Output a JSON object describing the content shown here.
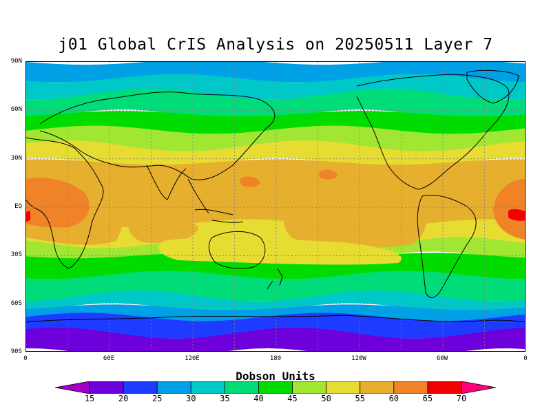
{
  "title": "j01 Global CrIS Analysis on 20250511 Layer 7",
  "legend": {
    "title": "Dobson Units",
    "ticks": [
      "15",
      "20",
      "25",
      "30",
      "35",
      "40",
      "45",
      "50",
      "55",
      "60",
      "65",
      "70"
    ],
    "colors": [
      "#a000c8",
      "#6e00dc",
      "#1e3cff",
      "#00a0e6",
      "#00c8c8",
      "#00dc78",
      "#00dc00",
      "#a0e632",
      "#e6dc32",
      "#e6af2d",
      "#f08228",
      "#f00000",
      "#ff007a"
    ]
  },
  "axes": {
    "lat_labels": [
      "90N",
      "60N",
      "30N",
      "EQ",
      "30S",
      "60S",
      "90S"
    ],
    "lon_labels": [
      "0",
      "60E",
      "120E",
      "180",
      "120W",
      "60W",
      "0"
    ]
  },
  "map_data": {
    "type": "filled-contour",
    "projection": "cylindrical",
    "lon_range": [
      0,
      360
    ],
    "lat_range": [
      -90,
      90
    ],
    "grid": true,
    "coastlines": true,
    "zonal_bands": [
      {
        "lat": [
          80,
          90
        ],
        "value": 27
      },
      {
        "lat": [
          70,
          80
        ],
        "value": 32
      },
      {
        "lat": [
          58,
          70
        ],
        "value": 37
      },
      {
        "lat": [
          48,
          58
        ],
        "value": 43
      },
      {
        "lat": [
          38,
          48
        ],
        "value": 47
      },
      {
        "lat": [
          28,
          38
        ],
        "value": 52
      },
      {
        "lat": [
          -10,
          28
        ],
        "value": 57
      },
      {
        "lat": [
          -22,
          -10
        ],
        "value": 52
      },
      {
        "lat": [
          -30,
          -22
        ],
        "value": 47
      },
      {
        "lat": [
          -42,
          -30
        ],
        "value": 42
      },
      {
        "lat": [
          -55,
          -42
        ],
        "value": 37
      },
      {
        "lat": [
          -62,
          -55
        ],
        "value": 32
      },
      {
        "lat": [
          -68,
          -62
        ],
        "value": 27
      },
      {
        "lat": [
          -78,
          -68
        ],
        "value": 22
      },
      {
        "lat": [
          -90,
          -78
        ],
        "value": 17
      }
    ],
    "features": [
      {
        "region": "Tropical Atlantic / West Africa",
        "value": 62
      },
      {
        "region": "Eastern Atlantic near Equator",
        "value": 67
      },
      {
        "region": "Central Pacific",
        "value": 57
      }
    ]
  }
}
